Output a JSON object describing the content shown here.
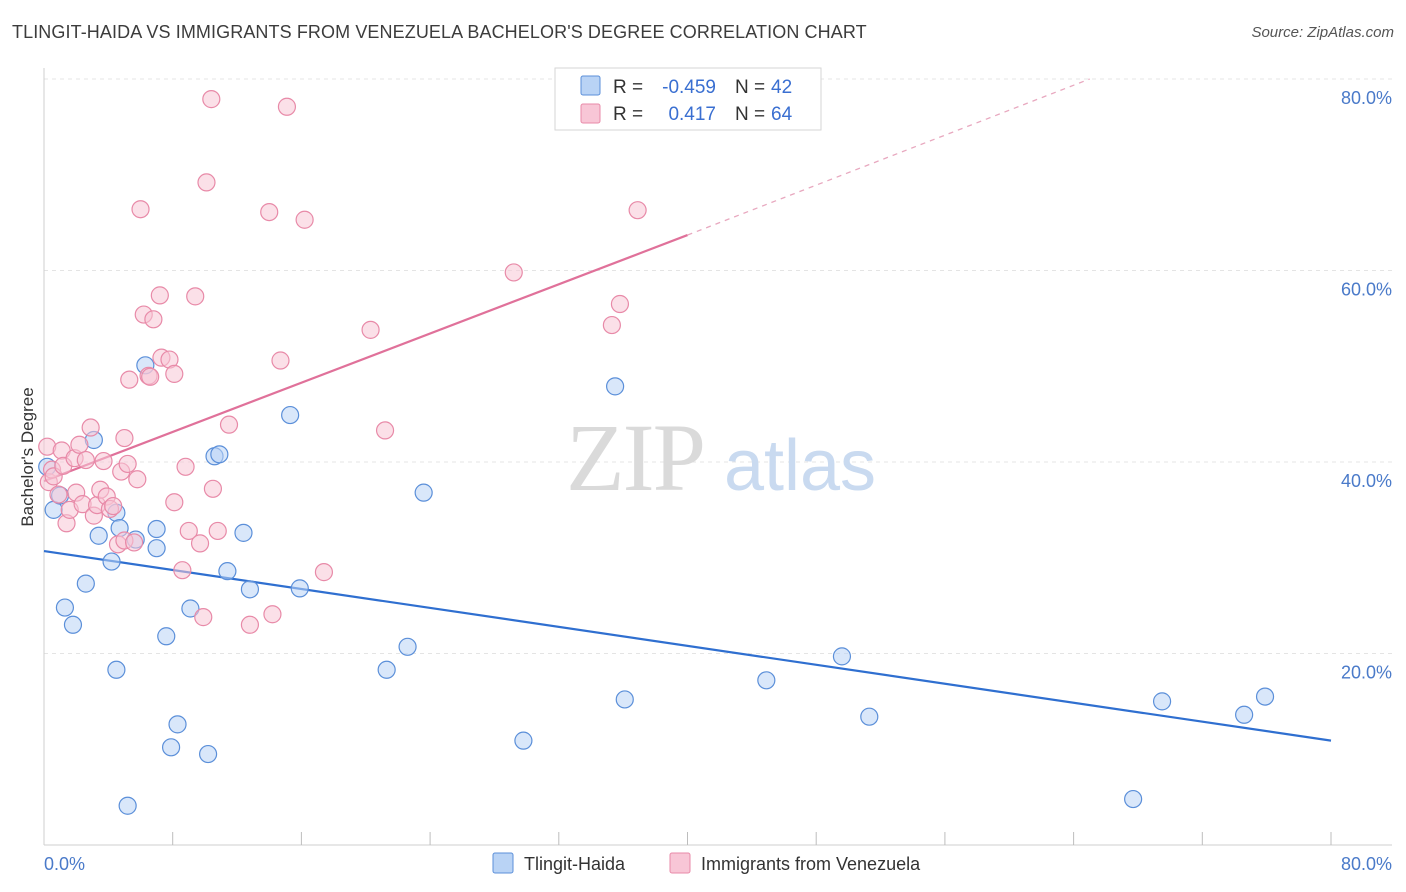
{
  "header": {
    "title": "TLINGIT-HAIDA VS IMMIGRANTS FROM VENEZUELA BACHELOR'S DEGREE CORRELATION CHART",
    "source": "Source: ZipAtlas.com"
  },
  "watermark": {
    "zip": "ZIP",
    "atlas": "atlas"
  },
  "colors": {
    "blue_fill": "#b9d3f5",
    "blue_stroke": "#5b8fd9",
    "blue_line": "#2f6fd0",
    "pink_fill": "#f8c6d6",
    "pink_stroke": "#e88aa8",
    "pink_line": "#e0719a",
    "grid": "#e4e4e4",
    "tick_text": "#4a7ac9"
  },
  "legend_top": {
    "rows": [
      {
        "r_label": "R =",
        "r_value": "-0.459",
        "n_label": "N =",
        "n_value": "42"
      },
      {
        "r_label": "R =",
        "r_value": "0.417",
        "n_label": "N =",
        "n_value": "64"
      }
    ]
  },
  "legend_bottom": {
    "items": [
      {
        "label": "Tlingit-Haida"
      },
      {
        "label": "Immigrants from Venezuela"
      }
    ]
  },
  "chart_data": {
    "type": "scatter",
    "title": "TLINGIT-HAIDA VS IMMIGRANTS FROM VENEZUELA BACHELOR'S DEGREE CORRELATION CHART",
    "xlabel": "",
    "ylabel": "Bachelor's Degree",
    "xlim": [
      0,
      80
    ],
    "ylim": [
      0,
      80
    ],
    "x_tick_labels": [
      {
        "value": 0,
        "label": "0.0%"
      },
      {
        "value": 80,
        "label": "80.0%"
      }
    ],
    "y_tick_labels": [
      {
        "value": 20,
        "label": "20.0%"
      },
      {
        "value": 40,
        "label": "40.0%"
      },
      {
        "value": 60,
        "label": "60.0%"
      },
      {
        "value": 80,
        "label": "80.0%"
      }
    ],
    "grid": true,
    "series": [
      {
        "name": "Tlingit-Haida",
        "color": "blue",
        "trend": {
          "x": [
            0,
            80
          ],
          "y": [
            30.7,
            10.9
          ],
          "dashed_to": null
        },
        "points": [
          [
            0.2,
            39.5
          ],
          [
            0.6,
            35.0
          ],
          [
            1.0,
            36.5
          ],
          [
            1.3,
            24.8
          ],
          [
            1.8,
            23.0
          ],
          [
            2.6,
            27.3
          ],
          [
            3.1,
            42.3
          ],
          [
            3.4,
            32.3
          ],
          [
            4.2,
            29.6
          ],
          [
            4.5,
            34.7
          ],
          [
            4.5,
            18.3
          ],
          [
            4.7,
            33.1
          ],
          [
            5.2,
            4.1
          ],
          [
            5.7,
            31.9
          ],
          [
            6.3,
            50.1
          ],
          [
            7.0,
            33.0
          ],
          [
            7.0,
            31.0
          ],
          [
            7.6,
            21.8
          ],
          [
            7.9,
            10.2
          ],
          [
            8.3,
            12.6
          ],
          [
            9.1,
            24.7
          ],
          [
            10.2,
            9.5
          ],
          [
            10.6,
            40.6
          ],
          [
            10.9,
            40.8
          ],
          [
            11.4,
            28.6
          ],
          [
            12.4,
            32.6
          ],
          [
            12.8,
            26.7
          ],
          [
            15.3,
            44.9
          ],
          [
            15.9,
            26.8
          ],
          [
            21.3,
            18.3
          ],
          [
            22.6,
            20.7
          ],
          [
            23.6,
            36.8
          ],
          [
            29.8,
            10.9
          ],
          [
            35.5,
            47.9
          ],
          [
            36.1,
            15.2
          ],
          [
            44.9,
            17.2
          ],
          [
            49.6,
            19.7
          ],
          [
            51.3,
            13.4
          ],
          [
            67.7,
            4.8
          ],
          [
            69.5,
            15.0
          ],
          [
            74.6,
            13.6
          ],
          [
            75.9,
            15.5
          ]
        ]
      },
      {
        "name": "Immigrants from Venezuela",
        "color": "pink",
        "trend": {
          "x": [
            0,
            40
          ],
          "y": [
            38.0,
            63.7
          ],
          "dashed_to": [
            65.0,
            80.0
          ]
        },
        "points": [
          [
            0.2,
            41.6
          ],
          [
            0.3,
            37.9
          ],
          [
            0.5,
            39.2
          ],
          [
            0.6,
            38.5
          ],
          [
            0.9,
            36.6
          ],
          [
            1.1,
            41.2
          ],
          [
            1.2,
            39.6
          ],
          [
            1.4,
            33.6
          ],
          [
            1.6,
            35.0
          ],
          [
            1.9,
            40.4
          ],
          [
            2.0,
            36.8
          ],
          [
            2.2,
            41.8
          ],
          [
            2.4,
            35.6
          ],
          [
            2.6,
            40.2
          ],
          [
            2.9,
            43.6
          ],
          [
            3.1,
            34.4
          ],
          [
            3.3,
            35.5
          ],
          [
            3.5,
            37.1
          ],
          [
            3.7,
            40.1
          ],
          [
            3.9,
            36.4
          ],
          [
            4.1,
            35.1
          ],
          [
            4.3,
            35.4
          ],
          [
            4.6,
            31.4
          ],
          [
            4.8,
            39.0
          ],
          [
            5.0,
            31.8
          ],
          [
            5.0,
            42.5
          ],
          [
            5.2,
            39.8
          ],
          [
            5.3,
            48.6
          ],
          [
            5.6,
            31.6
          ],
          [
            5.8,
            38.2
          ],
          [
            6.0,
            66.4
          ],
          [
            6.2,
            55.4
          ],
          [
            6.5,
            49.0
          ],
          [
            6.6,
            48.9
          ],
          [
            6.8,
            54.9
          ],
          [
            7.2,
            57.4
          ],
          [
            7.3,
            50.9
          ],
          [
            7.8,
            50.7
          ],
          [
            8.1,
            49.2
          ],
          [
            8.1,
            35.8
          ],
          [
            8.6,
            28.7
          ],
          [
            8.8,
            39.5
          ],
          [
            9.0,
            32.8
          ],
          [
            9.4,
            57.3
          ],
          [
            9.7,
            31.5
          ],
          [
            9.9,
            23.8
          ],
          [
            10.1,
            69.2
          ],
          [
            10.4,
            77.9
          ],
          [
            10.5,
            37.2
          ],
          [
            10.8,
            32.8
          ],
          [
            11.5,
            43.9
          ],
          [
            12.8,
            23.0
          ],
          [
            14.0,
            66.1
          ],
          [
            14.2,
            24.1
          ],
          [
            14.7,
            50.6
          ],
          [
            15.1,
            77.1
          ],
          [
            16.2,
            65.3
          ],
          [
            17.4,
            28.5
          ],
          [
            20.3,
            53.8
          ],
          [
            21.2,
            43.3
          ],
          [
            29.2,
            59.8
          ],
          [
            35.3,
            54.3
          ],
          [
            35.8,
            56.5
          ],
          [
            36.9,
            66.3
          ]
        ]
      }
    ]
  }
}
